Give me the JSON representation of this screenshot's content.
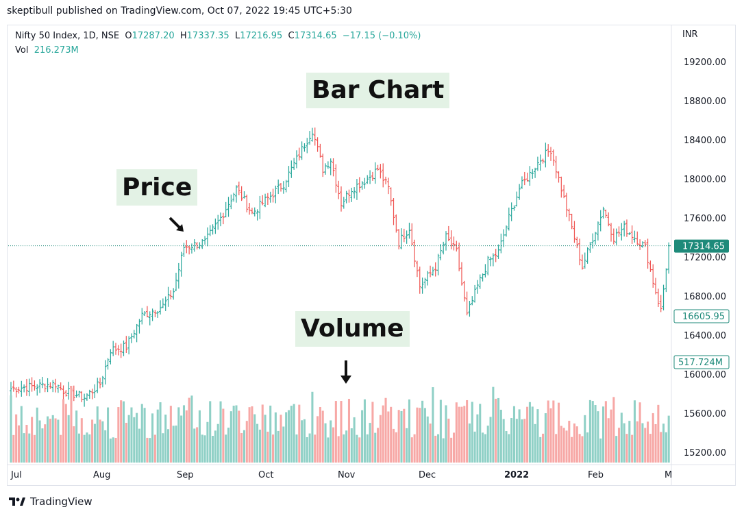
{
  "header": {
    "publisher_line": "skeptibull published on TradingView.com, Oct 07, 2022 19:45 UTC+5:30"
  },
  "legend": {
    "symbol": "Nifty 50 Index, 1D, NSE",
    "o_label": "O",
    "o_value": "17287.20",
    "h_label": "H",
    "h_value": "17337.35",
    "l_label": "L",
    "l_value": "17216.95",
    "c_label": "C",
    "c_value": "17314.65",
    "change": "−17.15 (−0.10%)",
    "vol_label": "Vol",
    "vol_value": "216.273M"
  },
  "currency": "INR",
  "annotations": {
    "bar_chart": "Bar Chart",
    "price": "Price",
    "volume": "Volume"
  },
  "badges": {
    "last_price": "17314.65",
    "price_2": "16605.95",
    "volume": "517.724M"
  },
  "footer": {
    "brand": "TradingView"
  },
  "colors": {
    "up": "#26a69a",
    "down": "#ef5350",
    "vol_up": "#8fd0c6",
    "vol_down": "#f7a8a6",
    "badge": "#1e8a7a"
  },
  "chart_data": {
    "type": "bar",
    "subtype": "ohlc",
    "y_axis": {
      "ticks": [
        15200,
        15600,
        16000,
        16400,
        16800,
        17200,
        17600,
        18000,
        18400,
        18800,
        19200
      ],
      "tick_labels": [
        "15200.00",
        "15600.00",
        "16000.00",
        "16400.00",
        "16800.00",
        "17200.00",
        "17600.00",
        "18000.00",
        "18400.00",
        "18800.00",
        "19200.00"
      ],
      "ylim": [
        14950,
        19400
      ]
    },
    "x_axis": {
      "tick_labels": [
        "Jul",
        "Aug",
        "Sep",
        "Oct",
        "Nov",
        "Dec",
        "2022",
        "Feb",
        "M"
      ]
    },
    "last_price_line": 17314.65,
    "anchors": [
      [
        0,
        15850
      ],
      [
        10,
        15880
      ],
      [
        17,
        15900
      ],
      [
        20,
        15830
      ],
      [
        28,
        15760
      ],
      [
        34,
        15900
      ],
      [
        38,
        16250
      ],
      [
        44,
        16280
      ],
      [
        50,
        16600
      ],
      [
        58,
        16700
      ],
      [
        62,
        16850
      ],
      [
        66,
        17300
      ],
      [
        74,
        17350
      ],
      [
        80,
        17600
      ],
      [
        86,
        17900
      ],
      [
        92,
        17650
      ],
      [
        98,
        17800
      ],
      [
        104,
        17950
      ],
      [
        110,
        18250
      ],
      [
        115,
        18500
      ],
      [
        119,
        18100
      ],
      [
        122,
        18200
      ],
      [
        126,
        17750
      ],
      [
        130,
        17900
      ],
      [
        136,
        18000
      ],
      [
        140,
        18100
      ],
      [
        144,
        17900
      ],
      [
        148,
        17350
      ],
      [
        152,
        17500
      ],
      [
        156,
        16900
      ],
      [
        162,
        17100
      ],
      [
        166,
        17400
      ],
      [
        170,
        17250
      ],
      [
        174,
        16600
      ],
      [
        178,
        16900
      ],
      [
        182,
        17150
      ],
      [
        186,
        17250
      ],
      [
        190,
        17600
      ],
      [
        194,
        17900
      ],
      [
        198,
        18050
      ],
      [
        202,
        18200
      ],
      [
        206,
        18300
      ],
      [
        210,
        17900
      ],
      [
        214,
        17500
      ],
      [
        218,
        17100
      ],
      [
        222,
        17400
      ],
      [
        226,
        17700
      ],
      [
        230,
        17400
      ],
      [
        234,
        17500
      ],
      [
        238,
        17400
      ],
      [
        242,
        17300
      ],
      [
        245,
        16950
      ],
      [
        248,
        16650
      ],
      [
        251,
        17314.65
      ]
    ],
    "volume_scale_max": 1.0,
    "volume_note": "volume bars drawn in lower pane, colored by bar direction"
  }
}
